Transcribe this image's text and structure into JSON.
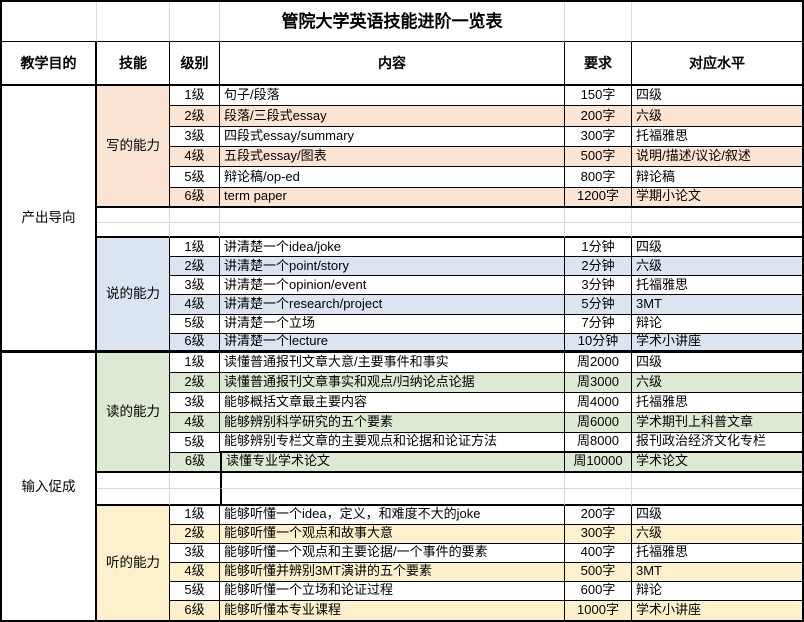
{
  "title": "管院大学英语技能进阶一览表",
  "headers": {
    "purpose": "教学目的",
    "skill": "技能",
    "level": "级别",
    "content": "内容",
    "requirement": "要求",
    "target": "对应水平"
  },
  "groups": [
    {
      "label": "产出导向"
    },
    {
      "label": "输入促成"
    }
  ],
  "sections": [
    {
      "skill": "写的能力",
      "color": "#FCE4D4",
      "rows": [
        {
          "level": "1级",
          "content": "句子/段落",
          "requirement": "150字",
          "target": "四级"
        },
        {
          "level": "2级",
          "content": "段落/三段式essay",
          "requirement": "200字",
          "target": "六级"
        },
        {
          "level": "3级",
          "content": "四段式essay/summary",
          "requirement": "300字",
          "target": "托福雅思"
        },
        {
          "level": "4级",
          "content": "五段式essay/图表",
          "requirement": "500字",
          "target": "说明/描述/议论/叙述"
        },
        {
          "level": "5级",
          "content": "辩论稿/op-ed",
          "requirement": "800字",
          "target": "辩论稿"
        },
        {
          "level": "6级",
          "content": "term paper",
          "requirement": "1200字",
          "target": "学期小论文"
        }
      ]
    },
    {
      "skill": "说的能力",
      "color": "#DAE5F1",
      "rows": [
        {
          "level": "1级",
          "content": "讲清楚一个idea/joke",
          "requirement": "1分钟",
          "target": "四级"
        },
        {
          "level": "2级",
          "content": "讲清楚一个point/story",
          "requirement": "2分钟",
          "target": "六级"
        },
        {
          "level": "3级",
          "content": "讲清楚一个opinion/event",
          "requirement": "3分钟",
          "target": "托福雅思"
        },
        {
          "level": "4级",
          "content": "讲清楚一个research/project",
          "requirement": "5分钟",
          "target": "3MT"
        },
        {
          "level": "5级",
          "content": "讲清楚一个立场",
          "requirement": "7分钟",
          "target": "辩论"
        },
        {
          "level": "6级",
          "content": "讲清楚一个lecture",
          "requirement": "10分钟",
          "target": "学术小讲座"
        }
      ]
    },
    {
      "skill": "读的能力",
      "color": "#DEE9D3",
      "rows": [
        {
          "level": "1级",
          "content": "读懂普通报刊文章大意/主要事件和事实",
          "requirement": "周2000",
          "target": "四级"
        },
        {
          "level": "2级",
          "content": "读懂普通报刊文章事实和观点/归纳论点论据",
          "requirement": "周3000",
          "target": "六级"
        },
        {
          "level": "3级",
          "content": "能够概括文章最主要内容",
          "requirement": "周4000",
          "target": "托福雅思"
        },
        {
          "level": "4级",
          "content": "能够辨别科学研究的五个要素",
          "requirement": "周6000",
          "target": "学术期刊上科普文章"
        },
        {
          "level": "5级",
          "content": "能够辨别专栏文章的主要观点和论据和论证方法",
          "requirement": "周8000",
          "target": "报刊政治经济文化专栏"
        },
        {
          "level": "6级",
          "content": "读懂专业学术论文",
          "requirement": "周10000",
          "target": "学术论文"
        }
      ]
    },
    {
      "skill": "听的能力",
      "color": "#FDF0CC",
      "rows": [
        {
          "level": "1级",
          "content": "能够听懂一个idea，定义，和难度不大的joke",
          "requirement": "200字",
          "target": "四级"
        },
        {
          "level": "2级",
          "content": "能够听懂一个观点和故事大意",
          "requirement": "300字",
          "target": "六级"
        },
        {
          "level": "3级",
          "content": "能够听懂一个观点和主要论据/一个事件的要素",
          "requirement": "400字",
          "target": "托福雅思"
        },
        {
          "level": "4级",
          "content": "能够听懂并辨别3MT演讲的五个要素",
          "requirement": "500字",
          "target": "3MT"
        },
        {
          "level": "5级",
          "content": "能够听懂一个立场和论证过程",
          "requirement": "600字",
          "target": "辩论"
        },
        {
          "level": "6级",
          "content": "能够听懂本专业课程",
          "requirement": "1000字",
          "target": "学术小讲座"
        }
      ]
    }
  ],
  "colors": {
    "border": "#000000",
    "gridline": "#D0D7E5",
    "writing_fill": "#FCE4D4",
    "speaking_fill": "#DAE5F1",
    "reading_fill": "#DEE9D3",
    "listening_fill": "#FDF0CC"
  }
}
